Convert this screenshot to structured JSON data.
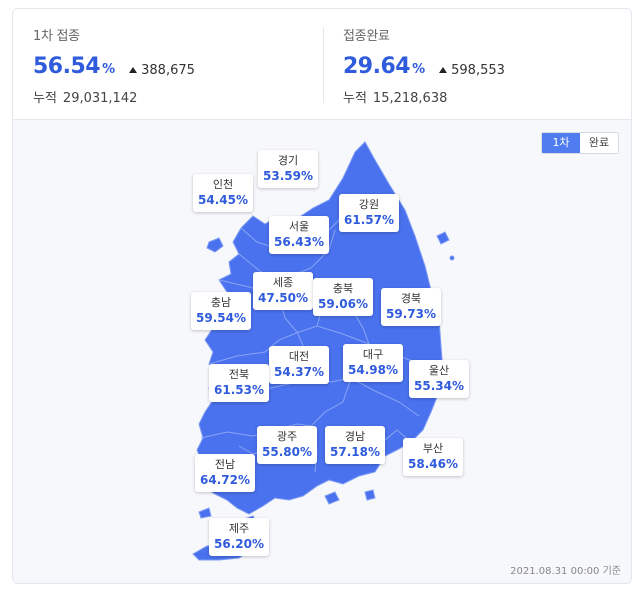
{
  "first_dose": {
    "label": "1차 접종",
    "percent": "56.54",
    "percent_unit": "%",
    "delta": "388,675",
    "cumulative_label": "누적",
    "cumulative": "29,031,142"
  },
  "completed": {
    "label": "접종완료",
    "percent": "29.64",
    "percent_unit": "%",
    "delta": "598,553",
    "cumulative_label": "누적",
    "cumulative": "15,218,638"
  },
  "toggle": {
    "first": "1차",
    "complete": "완료",
    "active": "first"
  },
  "colors": {
    "accent": "#2f5bdc",
    "map_fill": "#4a72ee",
    "map_border": "#6e8ef2"
  },
  "regions": {
    "incheon": {
      "name": "인천",
      "value": "54.45%"
    },
    "gyeonggi": {
      "name": "경기",
      "value": "53.59%"
    },
    "seoul": {
      "name": "서울",
      "value": "56.43%"
    },
    "gangwon": {
      "name": "강원",
      "value": "61.57%"
    },
    "sejong": {
      "name": "세종",
      "value": "47.50%"
    },
    "chungbuk": {
      "name": "충북",
      "value": "59.06%"
    },
    "chungnam": {
      "name": "충남",
      "value": "59.54%"
    },
    "gyeongbuk": {
      "name": "경북",
      "value": "59.73%"
    },
    "daejeon": {
      "name": "대전",
      "value": "54.37%"
    },
    "daegu": {
      "name": "대구",
      "value": "54.98%"
    },
    "jeonbuk": {
      "name": "전북",
      "value": "61.53%"
    },
    "ulsan": {
      "name": "울산",
      "value": "55.34%"
    },
    "gwangju": {
      "name": "광주",
      "value": "55.80%"
    },
    "gyeongnam": {
      "name": "경남",
      "value": "57.18%"
    },
    "jeonnam": {
      "name": "전남",
      "value": "64.72%"
    },
    "busan": {
      "name": "부산",
      "value": "58.46%"
    },
    "jeju": {
      "name": "제주",
      "value": "56.20%"
    }
  },
  "basis": "2021.08.31 00:00 기준"
}
